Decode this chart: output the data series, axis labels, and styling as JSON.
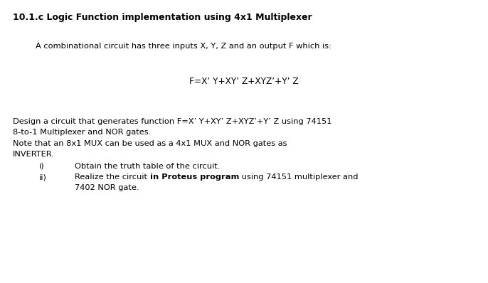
{
  "background_color": "#ffffff",
  "title": "10.1.c Logic Function implementation using 4x1 Multiplexer",
  "line1": "A combinational circuit has three inputs X, Y, Z and an output F which is:",
  "formula": "F=X’ Y+XY’ Z+XYZ’+Y’ Z",
  "line2_part1": "Design a circuit that generates function F=X’ Y+XY’ Z+XYZ’+Y’ Z using 74151",
  "line2_part2": "8-to-1 Multiplexer and NOR gates.",
  "line3_part1": "Note that an 8x1 MUX can be used as a 4x1 MUX and NOR gates as",
  "line3_part2": "INVERTER.",
  "item_i_label": "i)",
  "item_i_text": "Obtain the truth table of the circuit.",
  "item_ii_label": "ii)",
  "item_ii_before": "Realize the circuit ",
  "item_ii_bold": "in Proteus program",
  "item_ii_after": " using 74151 multiplexer and",
  "item_ii_line2": "7402 NOR gate.",
  "fig_width": 6.86,
  "fig_height": 3.98,
  "dpi": 100,
  "font_size_title": 9.0,
  "font_size_body": 8.2
}
